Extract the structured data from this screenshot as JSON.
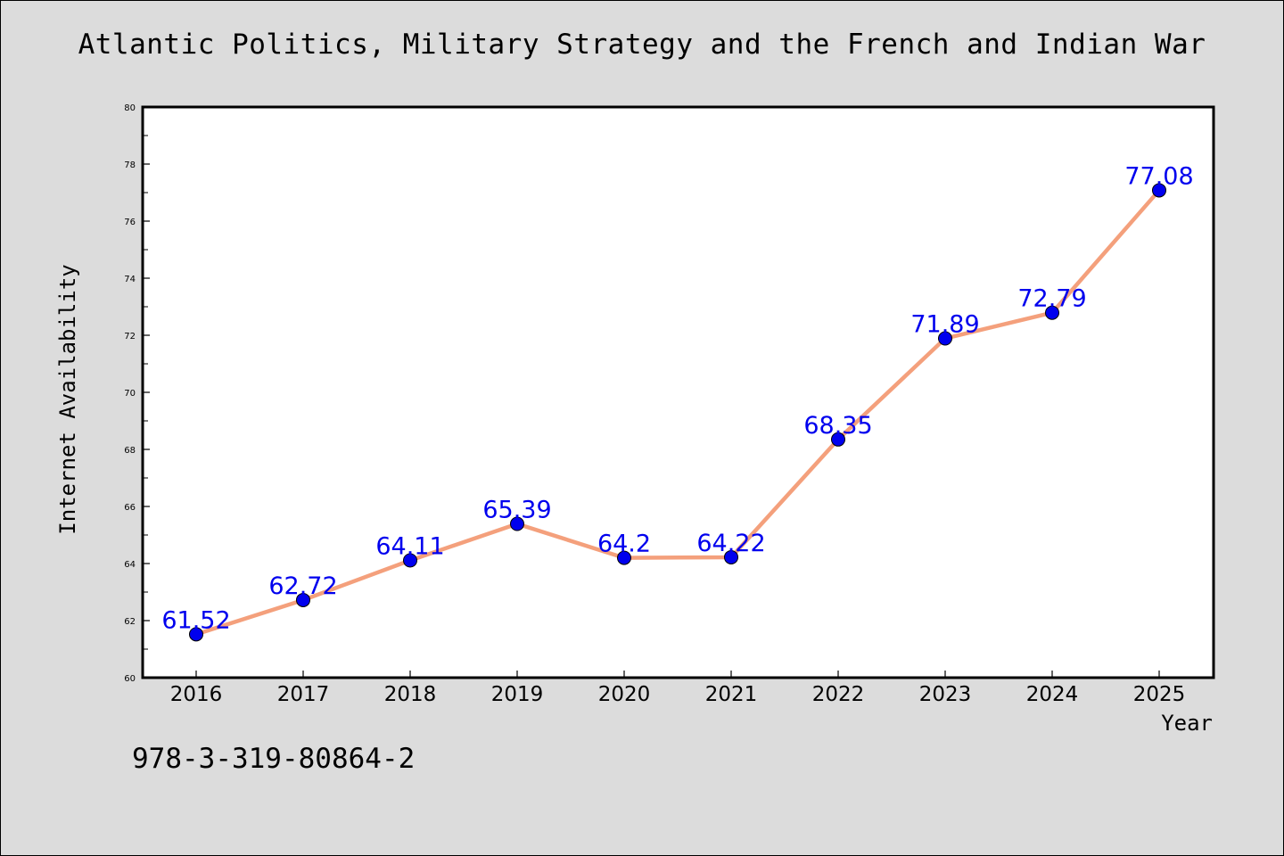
{
  "chart_data": {
    "type": "line",
    "title": "Atlantic Politics, Military Strategy and the French and Indian War",
    "xlabel": "Year",
    "ylabel": "Internet Availability",
    "categories": [
      "2016",
      "2017",
      "2018",
      "2019",
      "2020",
      "2021",
      "2022",
      "2023",
      "2024",
      "2025"
    ],
    "series": [
      {
        "values": [
          61.52,
          62.72,
          64.11,
          65.39,
          64.2,
          64.22,
          68.35,
          71.89,
          72.79,
          77.08
        ],
        "labels": [
          "61.52",
          "62.72",
          "64.11",
          "65.39",
          "64.2",
          "64.22",
          "68.35",
          "71.89",
          "72.79",
          "77.08"
        ]
      }
    ],
    "ylim": [
      60,
      80
    ],
    "yticks": [
      60,
      62,
      64,
      66,
      68,
      70,
      72,
      74,
      76,
      78,
      80
    ],
    "grid": false,
    "line_color": "#f4a07c",
    "marker_color": "#0000ee",
    "label_color": "#0000ee"
  },
  "footer_code": "978-3-319-80864-2"
}
